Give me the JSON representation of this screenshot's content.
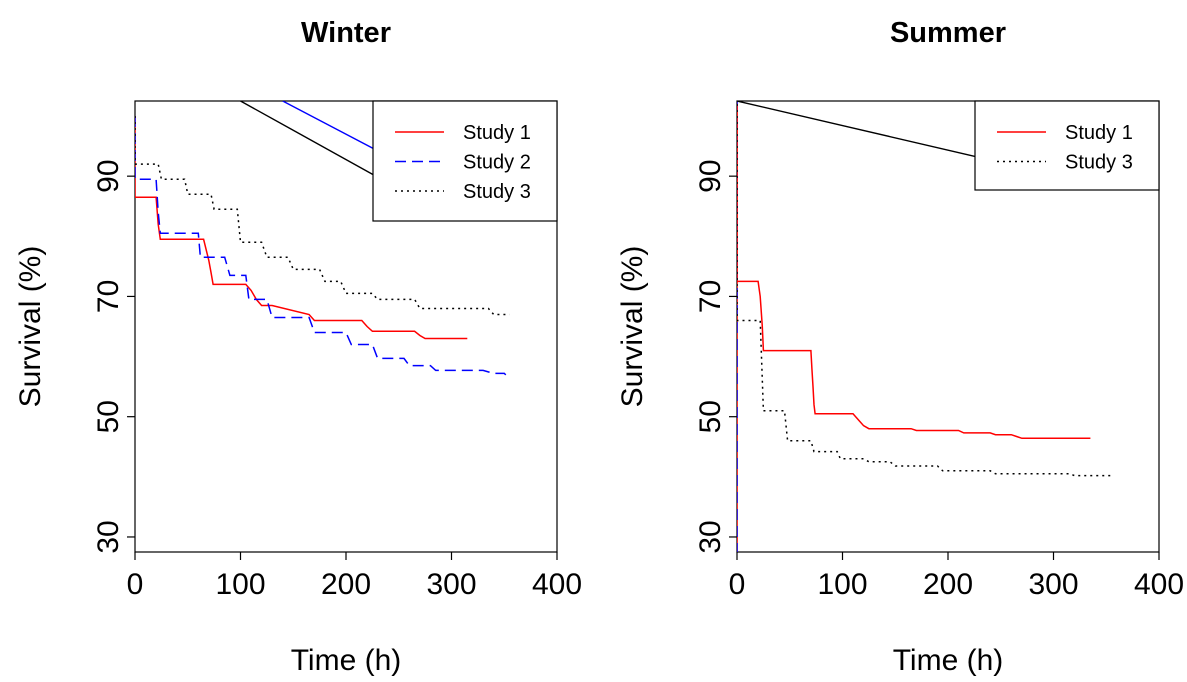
{
  "chart_data": [
    {
      "type": "line",
      "title": "Winter",
      "xlabel": "Time (h)",
      "ylabel": "Survival (%)",
      "xlim": [
        0,
        400
      ],
      "ylim": [
        27.5,
        102.5
      ],
      "xticks": [
        "0",
        "100",
        "200",
        "300",
        "400"
      ],
      "yticks": [
        "30",
        "50",
        "70",
        "90"
      ],
      "grid": false,
      "legend_position": "top-right",
      "series": [
        {
          "name": "Study 1",
          "color": "#ff0000",
          "style": "solid",
          "x": [
            0,
            0,
            20,
            22,
            24,
            65,
            70,
            72,
            74,
            105,
            110,
            115,
            120,
            130,
            165,
            170,
            215,
            220,
            225,
            265,
            270,
            275,
            315
          ],
          "y": [
            100,
            86.5,
            86.5,
            82,
            79.5,
            79.5,
            76,
            74,
            72,
            72,
            71,
            69.5,
            68.5,
            68.5,
            67,
            66,
            66,
            65,
            64.2,
            64.2,
            63.5,
            63,
            63
          ]
        },
        {
          "name": "Study 2",
          "color": "#0000ff",
          "style": "dashed",
          "x": [
            0,
            0,
            20,
            22,
            24,
            60,
            62,
            85,
            90,
            105,
            108,
            125,
            130,
            165,
            170,
            200,
            205,
            225,
            230,
            255,
            260,
            280,
            285,
            330,
            340,
            350,
            355
          ],
          "y": [
            100,
            89.5,
            89.5,
            84,
            80.5,
            80.5,
            76.5,
            76.5,
            73.5,
            73.5,
            69.5,
            69.5,
            66.5,
            66.5,
            64,
            64,
            62,
            62,
            59.7,
            59.7,
            58.5,
            58.5,
            57.7,
            57.7,
            57.2,
            57.2,
            56.3
          ]
        },
        {
          "name": "Study 3",
          "color": "#000000",
          "style": "dotted",
          "x": [
            0,
            0,
            22,
            25,
            47,
            50,
            72,
            75,
            97,
            100,
            120,
            125,
            145,
            150,
            175,
            180,
            195,
            200,
            225,
            230,
            265,
            270,
            335,
            340,
            355
          ],
          "y": [
            100,
            92,
            92,
            89.5,
            89.5,
            87,
            87,
            84.5,
            84.5,
            79,
            79,
            76.5,
            76.5,
            74.5,
            74.5,
            72.5,
            72.5,
            70.5,
            70.5,
            69.5,
            69.5,
            68,
            68,
            67,
            67
          ]
        }
      ],
      "legend_callouts": [
        {
          "series": "Study 2",
          "color": "#0000ff",
          "from": [
            140,
            102.5
          ],
          "to": [
            252,
            92.2
          ]
        },
        {
          "series": "Study 3",
          "color": "#000000",
          "from": [
            100,
            102.5
          ],
          "to": [
            252,
            87.7
          ]
        }
      ]
    },
    {
      "type": "line",
      "title": "Summer",
      "xlabel": "Time (h)",
      "ylabel": "Survival (%)",
      "xlim": [
        0,
        400
      ],
      "ylim": [
        27.5,
        102.5
      ],
      "xticks": [
        "0",
        "100",
        "200",
        "300",
        "400"
      ],
      "yticks": [
        "30",
        "50",
        "70",
        "90"
      ],
      "grid": false,
      "legend_position": "top-right",
      "series": [
        {
          "name": "Study 1",
          "color": "#ff0000",
          "style": "solid",
          "x": [
            0,
            0,
            20,
            22,
            24,
            25,
            70,
            71,
            72,
            73,
            74,
            110,
            115,
            120,
            125,
            165,
            170,
            210,
            215,
            240,
            245,
            260,
            265,
            270,
            335
          ],
          "y": [
            102,
            72.5,
            72.5,
            70,
            65,
            61,
            61,
            58,
            55,
            52,
            50.5,
            50.5,
            49.5,
            48.5,
            48,
            48,
            47.7,
            47.7,
            47.3,
            47.3,
            47,
            47,
            46.7,
            46.4,
            46.4
          ]
        },
        {
          "name": "Study 3",
          "color": "#000000",
          "style": "dotted",
          "x": [
            0,
            0,
            22,
            25,
            45,
            48,
            70,
            73,
            95,
            98,
            120,
            125,
            145,
            150,
            190,
            195,
            240,
            245,
            315,
            320,
            355
          ],
          "y": [
            102,
            66,
            66,
            51,
            51,
            46,
            46,
            44.2,
            44.2,
            43,
            43,
            42.5,
            42.5,
            41.8,
            41.8,
            41,
            41,
            40.5,
            40.5,
            40.2,
            40.2
          ]
        }
      ],
      "legend_callouts": [
        {
          "series": "Study 3",
          "color": "#000000",
          "from": [
            0,
            102.5
          ],
          "to": [
            252,
            92.2
          ]
        }
      ],
      "vertical_markers": [
        {
          "x": 0,
          "color": "#ff0000",
          "style": "solid"
        },
        {
          "x": 0,
          "color": "#0000ff",
          "style": "dashed"
        }
      ]
    }
  ]
}
